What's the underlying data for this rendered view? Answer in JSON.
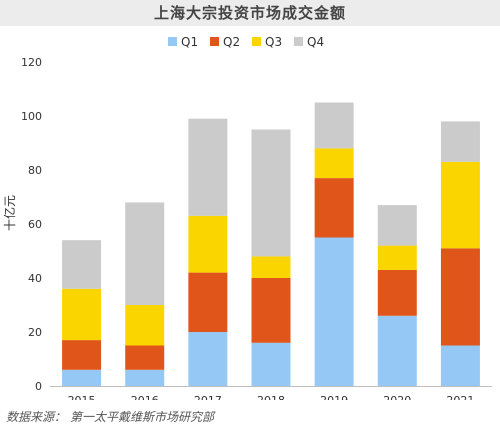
{
  "chart_data": {
    "type": "bar",
    "stacked": true,
    "title": "上海大宗投资市场成交金额",
    "ylabel": "十亿元",
    "xlabel": "",
    "ylim": [
      0,
      120
    ],
    "yticks": [
      0,
      20,
      40,
      60,
      80,
      100,
      120
    ],
    "categories": [
      "2015",
      "2016",
      "2017",
      "2018",
      "2019",
      "2020",
      "2021"
    ],
    "series": [
      {
        "name": "Q1",
        "color": "#96c8f5",
        "values": [
          6,
          6,
          20,
          16,
          55,
          26,
          15
        ]
      },
      {
        "name": "Q2",
        "color": "#e0561a",
        "values": [
          11,
          9,
          22,
          24,
          22,
          17,
          36
        ]
      },
      {
        "name": "Q3",
        "color": "#fad500",
        "values": [
          19,
          15,
          21,
          8,
          11,
          9,
          32
        ]
      },
      {
        "name": "Q4",
        "color": "#cbcbcb",
        "values": [
          18,
          38,
          36,
          47,
          17,
          15,
          15
        ]
      }
    ],
    "legend_position": "top-center",
    "grid": false
  },
  "source": {
    "label": "数据来源：",
    "text": "第一太平戴维斯市场研究部"
  }
}
